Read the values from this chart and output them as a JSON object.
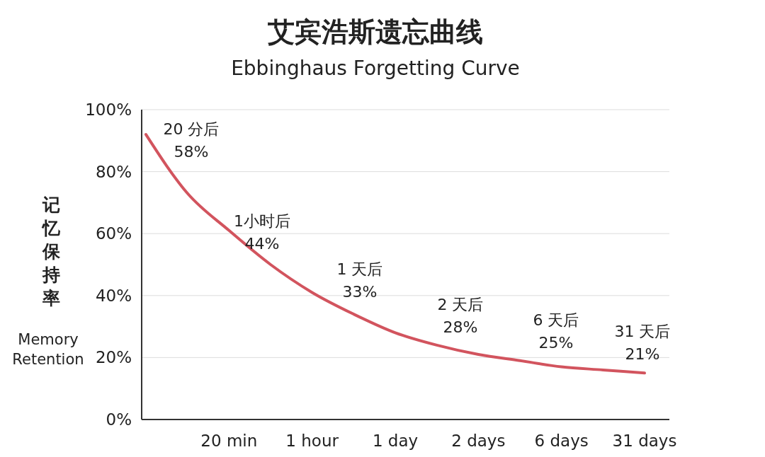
{
  "chart_data": {
    "type": "line",
    "title": "艾宾浩斯遗忘曲线",
    "subtitle": "Ebbinghaus Forgetting Curve",
    "ylabel": "记忆保持率\nMemory\nRetention",
    "categories": [
      null,
      null,
      "20 min",
      null,
      "1 hour",
      null,
      "1 day",
      null,
      "2 days",
      null,
      "6 days",
      null,
      "31 days"
    ],
    "series": [
      {
        "color": "#d2545e",
        "values": [
          92,
          73,
          61,
          50,
          41,
          34,
          28,
          24,
          21,
          19,
          17,
          16,
          15
        ]
      }
    ],
    "ylim": [
      0,
      100
    ],
    "yticks": [
      {
        "value": 0,
        "label": "0%"
      },
      {
        "value": 20,
        "label": "20%"
      },
      {
        "value": 40,
        "label": "40%"
      },
      {
        "value": 60,
        "label": "60%"
      },
      {
        "value": 80,
        "label": "80%"
      },
      {
        "value": 100,
        "label": "100%"
      }
    ],
    "grid": "y",
    "marker": "none",
    "line_style": "solid",
    "annotations": [
      "20 分后\n58%",
      "1小时后\n44%",
      "1 天后\n33%",
      "2 天后\n28%",
      "6 天后\n25%",
      "31 天后\n21%"
    ]
  }
}
